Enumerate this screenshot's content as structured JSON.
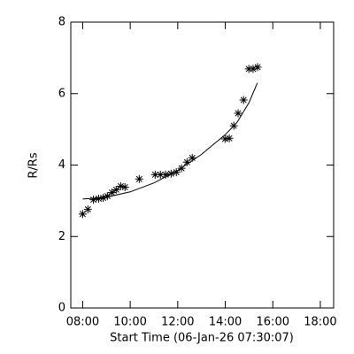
{
  "chart_data": {
    "type": "scatter",
    "xlabel": "Start Time (06-Jan-26 07:30:07)",
    "ylabel": "R/Rs",
    "xlim": [
      7.5,
      18.56
    ],
    "ylim": [
      0,
      8
    ],
    "xticks": [
      {
        "value": 8,
        "label": "08:00"
      },
      {
        "value": 10,
        "label": "10:00"
      },
      {
        "value": 12,
        "label": "12:00"
      },
      {
        "value": 14,
        "label": "14:00"
      },
      {
        "value": 16,
        "label": "16:00"
      },
      {
        "value": 18,
        "label": "18:00"
      }
    ],
    "yticks": [
      0,
      2,
      4,
      6,
      8
    ],
    "color": "#000000",
    "points": {
      "x": [
        8.0,
        8.22,
        8.45,
        8.67,
        8.86,
        9.04,
        9.23,
        9.41,
        9.6,
        9.78,
        10.38,
        11.05,
        11.27,
        11.49,
        11.72,
        11.94,
        12.16,
        12.39,
        12.61,
        13.99,
        14.17,
        14.36,
        14.54,
        14.77,
        14.99,
        15.17,
        15.36
      ],
      "values": [
        2.63,
        2.76,
        3.03,
        3.06,
        3.08,
        3.13,
        3.23,
        3.31,
        3.41,
        3.38,
        3.61,
        3.73,
        3.73,
        3.73,
        3.76,
        3.8,
        3.91,
        4.08,
        4.2,
        4.73,
        4.75,
        5.1,
        5.45,
        5.82,
        6.69,
        6.69,
        6.74
      ]
    },
    "fit": {
      "x": [
        8.0,
        9.0,
        10.0,
        11.0,
        12.0,
        13.0,
        14.0,
        14.5,
        15.0,
        15.35
      ],
      "values": [
        3.05,
        3.1,
        3.25,
        3.5,
        3.85,
        4.3,
        4.85,
        5.2,
        5.75,
        6.3
      ]
    }
  }
}
